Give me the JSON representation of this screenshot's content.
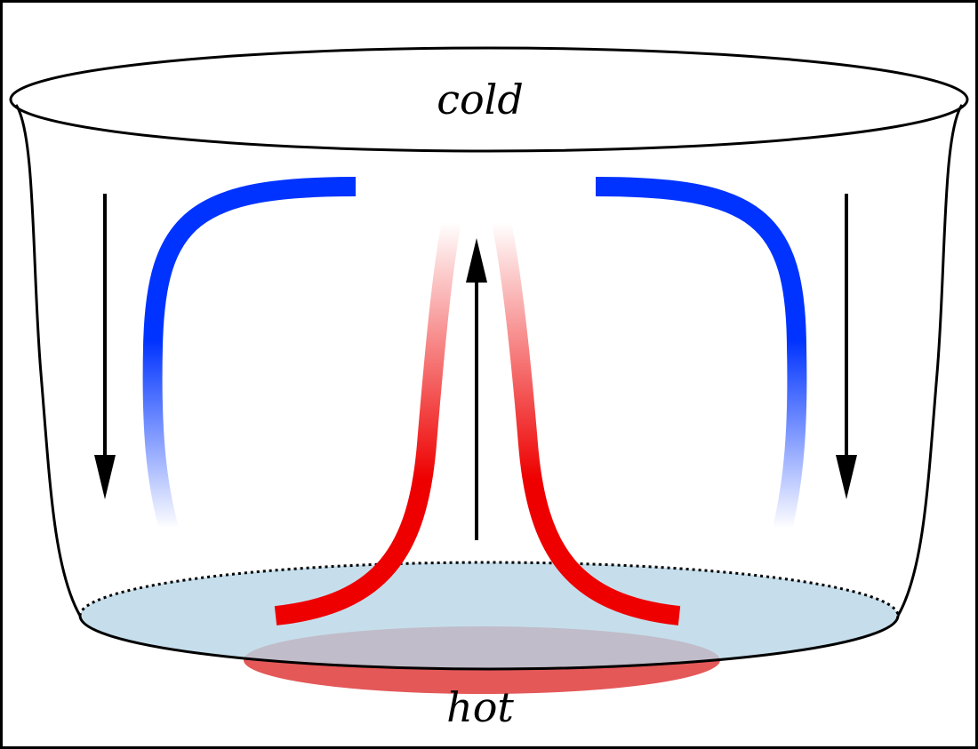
{
  "labels": {
    "top": "cold",
    "bottom": "hot"
  },
  "colors": {
    "cold": "#0033ff",
    "hot": "#ee0000",
    "water_surface": "#b8d6e6",
    "heat_source": "#e45858",
    "outline": "#000000",
    "frame": "#000000"
  },
  "icons": {
    "arrow_left": "arrow-down-icon",
    "arrow_center": "arrow-up-icon",
    "arrow_right": "arrow-down-icon"
  }
}
